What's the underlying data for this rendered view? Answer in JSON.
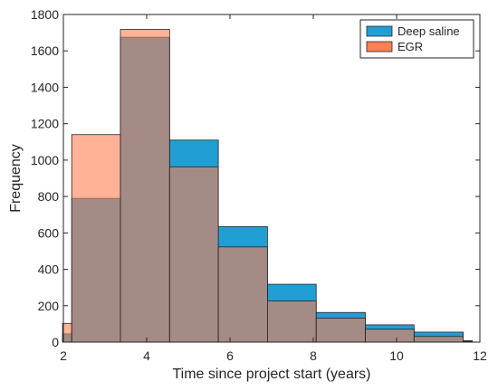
{
  "chart_data": {
    "type": "bar",
    "xlabel": "Time since project start (years)",
    "ylabel": "Frequency",
    "xlim": [
      2,
      12
    ],
    "ylim": [
      0,
      1800
    ],
    "xticks": [
      "2",
      "4",
      "6",
      "8",
      "10",
      "12"
    ],
    "yticks": [
      "0",
      "200",
      "400",
      "600",
      "800",
      "1000",
      "1200",
      "1400",
      "1600",
      "1800"
    ],
    "grid": false,
    "legend_position": "top-right",
    "series": [
      {
        "name": "Deep saline",
        "color": "#1f9fd4",
        "bins": [
          {
            "x0": 1.98,
            "x1": 2.2,
            "value": 45
          },
          {
            "x0": 2.2,
            "x1": 3.37,
            "value": 790
          },
          {
            "x0": 3.37,
            "x1": 4.55,
            "value": 1675
          },
          {
            "x0": 4.55,
            "x1": 5.72,
            "value": 1110
          },
          {
            "x0": 5.72,
            "x1": 6.9,
            "value": 635
          },
          {
            "x0": 6.9,
            "x1": 8.07,
            "value": 318
          },
          {
            "x0": 8.07,
            "x1": 9.25,
            "value": 163
          },
          {
            "x0": 9.25,
            "x1": 10.42,
            "value": 95
          },
          {
            "x0": 10.42,
            "x1": 11.6,
            "value": 55
          },
          {
            "x0": 11.6,
            "x1": 11.82,
            "value": 8
          }
        ]
      },
      {
        "name": "EGR",
        "color": "#ff7f50",
        "bins": [
          {
            "x0": 1.98,
            "x1": 2.2,
            "value": 103
          },
          {
            "x0": 2.2,
            "x1": 3.37,
            "value": 1140
          },
          {
            "x0": 3.37,
            "x1": 4.55,
            "value": 1718
          },
          {
            "x0": 4.55,
            "x1": 5.72,
            "value": 963
          },
          {
            "x0": 5.72,
            "x1": 6.9,
            "value": 523
          },
          {
            "x0": 6.9,
            "x1": 8.07,
            "value": 226
          },
          {
            "x0": 8.07,
            "x1": 9.25,
            "value": 132
          },
          {
            "x0": 9.25,
            "x1": 10.42,
            "value": 71
          },
          {
            "x0": 10.42,
            "x1": 11.6,
            "value": 31
          },
          {
            "x0": 11.6,
            "x1": 11.82,
            "value": 4
          }
        ]
      }
    ]
  }
}
